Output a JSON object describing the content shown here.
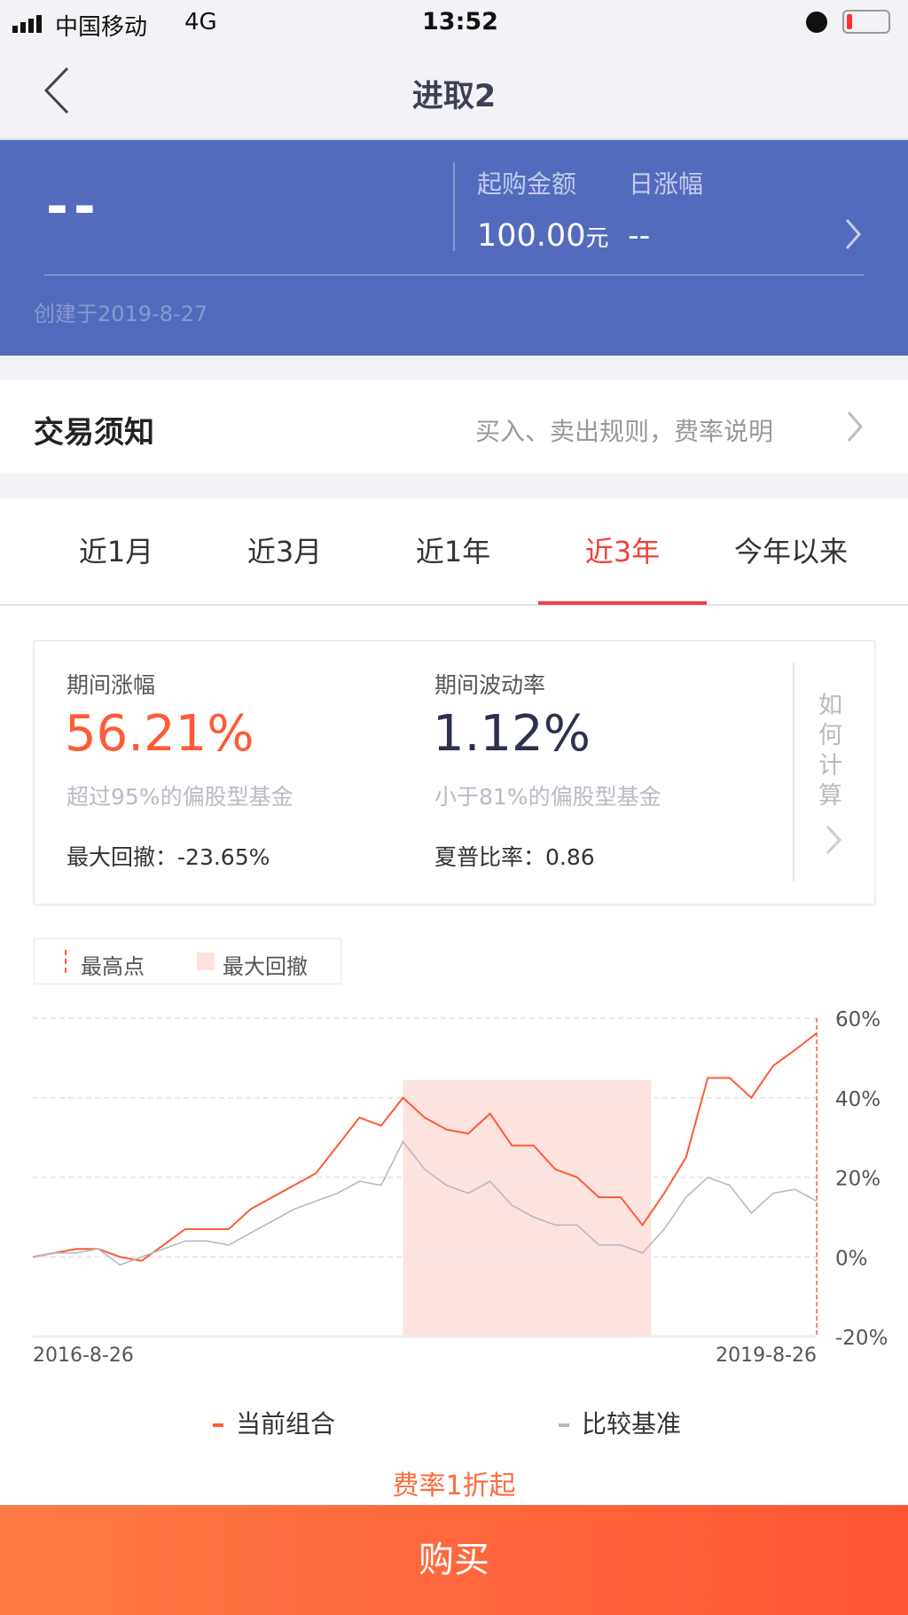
{
  "status": {
    "carrier": "中国移动",
    "network": "4G",
    "time": "13:52"
  },
  "nav": {
    "title": "进取2"
  },
  "hero": {
    "value": "--",
    "min_buy_label": "起购金额",
    "daily_change_label": "日涨幅",
    "min_buy_value": "100.00",
    "min_buy_unit": "元",
    "daily_change_value": "--",
    "created": "创建于2019-8-27"
  },
  "notice": {
    "title": "交易须知",
    "link": "买入、卖出规则，费率说明"
  },
  "tabs": [
    {
      "label": "近1月"
    },
    {
      "label": "近3月"
    },
    {
      "label": "近1年"
    },
    {
      "label": "近3年",
      "active": true
    },
    {
      "label": "今年以来"
    }
  ],
  "stats": {
    "return_label": "期间涨幅",
    "return_value": "56.21%",
    "return_rank": "超过95%的偏股型基金",
    "max_dd_label": "最大回撤：",
    "max_dd_value": "-23.65%",
    "vol_label": "期间波动率",
    "vol_value": "1.12%",
    "vol_rank": "小于81%的偏股型基金",
    "sharpe_label": "夏普比率：",
    "sharpe_value": "0.86",
    "how": "如何计算"
  },
  "chart_legend": {
    "peak": "最高点",
    "drawdown": "最大回撤"
  },
  "chart_data": {
    "type": "line",
    "x_start": "2016-8-26",
    "x_end": "2019-8-26",
    "x_labels": [
      "2016-8-26",
      "2019-8-26"
    ],
    "y_ticks": [
      "60%",
      "40%",
      "20%",
      "0%",
      "-20%"
    ],
    "ylim": [
      -20,
      60
    ],
    "grid": true,
    "x": [
      "2016-08",
      "2016-09",
      "2016-10",
      "2016-11",
      "2016-12",
      "2017-01",
      "2017-02",
      "2017-03",
      "2017-04",
      "2017-05",
      "2017-06",
      "2017-07",
      "2017-08",
      "2017-09",
      "2017-10",
      "2017-11",
      "2017-12",
      "2018-01",
      "2018-02",
      "2018-03",
      "2018-04",
      "2018-05",
      "2018-06",
      "2018-07",
      "2018-08",
      "2018-09",
      "2018-10",
      "2018-11",
      "2018-12",
      "2019-01",
      "2019-02",
      "2019-03",
      "2019-04",
      "2019-05",
      "2019-06",
      "2019-07",
      "2019-08"
    ],
    "series": [
      {
        "name": "当前组合",
        "color": "#ff5a36",
        "values": [
          0,
          1,
          2,
          2,
          0,
          -1,
          3,
          7,
          7,
          7,
          12,
          15,
          18,
          21,
          28,
          35,
          33,
          40,
          35,
          32,
          31,
          36,
          28,
          28,
          22,
          20,
          15,
          15,
          8,
          16,
          25,
          45,
          45,
          40,
          48,
          52,
          56.21
        ]
      },
      {
        "name": "比较基准",
        "color": "#b8b8c8",
        "values": [
          0,
          1,
          1,
          2,
          -2,
          0,
          2,
          4,
          4,
          3,
          6,
          9,
          12,
          14,
          16,
          19,
          18,
          29,
          22,
          18,
          16,
          19,
          13,
          10,
          8,
          8,
          3,
          3,
          1,
          7,
          15,
          20,
          18,
          11,
          16,
          17,
          14
        ]
      }
    ],
    "drawdown": {
      "start": "2018-01",
      "end": "2018-12",
      "color": "#fde3df"
    },
    "peak_marker": "2019-08"
  },
  "footer": {
    "fee": "费率1折起",
    "buy": "购买"
  },
  "colors": {
    "hero": "#536bbd",
    "accent": "#f0403a",
    "buy_start": "#ff7b45",
    "buy_end": "#ff5533"
  }
}
